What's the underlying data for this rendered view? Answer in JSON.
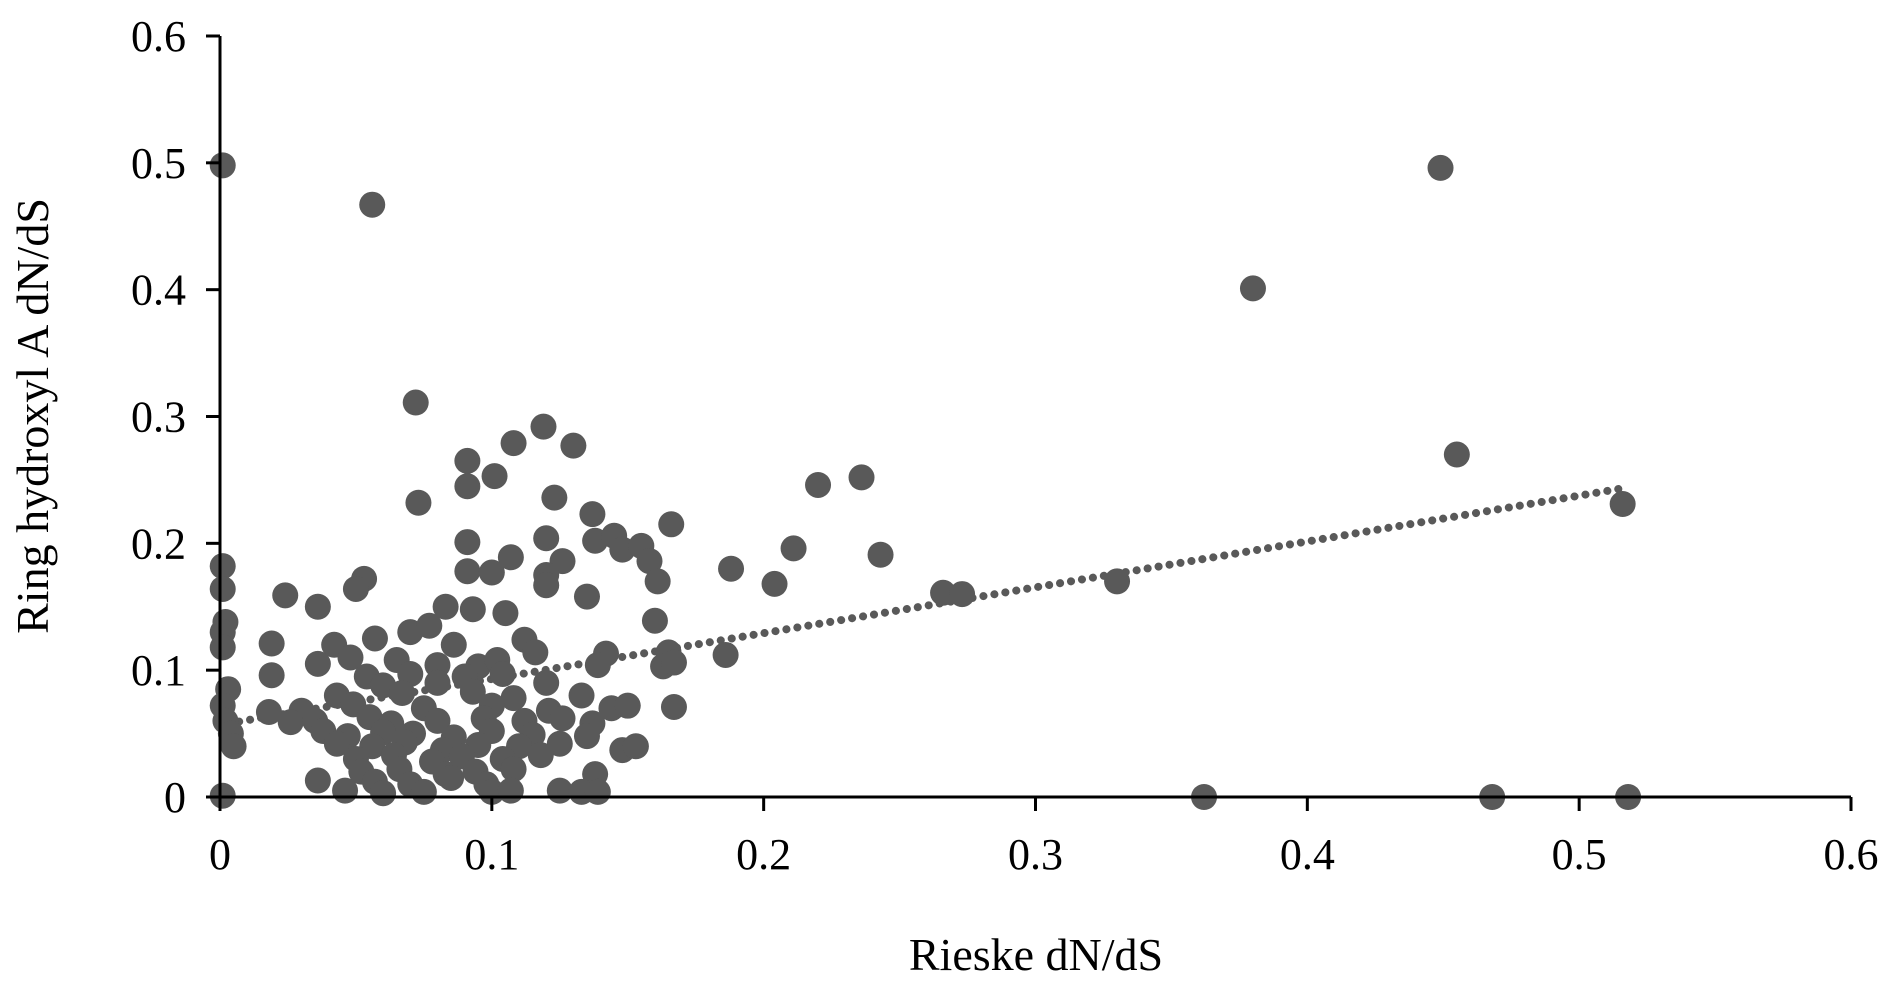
{
  "chart_data": {
    "type": "scatter",
    "title": "",
    "xlabel": "Rieske dN/dS",
    "ylabel": "Ring hydroxyl A dN/dS",
    "xlim": [
      0,
      0.6
    ],
    "ylim": [
      0,
      0.6
    ],
    "xticks": [
      0,
      0.1,
      0.2,
      0.3,
      0.4,
      0.5,
      0.6
    ],
    "yticks": [
      0,
      0.1,
      0.2,
      0.3,
      0.4,
      0.5,
      0.6
    ],
    "xtick_labels": [
      "0",
      "0.1",
      "0.2",
      "0.3",
      "0.4",
      "0.5",
      "0.6"
    ],
    "ytick_labels": [
      "0",
      "0.1",
      "0.2",
      "0.3",
      "0.4",
      "0.5",
      "0.6"
    ],
    "grid": false,
    "legend": "none",
    "marker_color": "#595959",
    "trendline": {
      "type": "linear",
      "style": "dotted",
      "color": "#595959",
      "x": [
        0.003,
        0.515
      ],
      "y": [
        0.058,
        0.243
      ]
    },
    "series": [
      {
        "name": "points",
        "points": [
          [
            0.001,
            0.498
          ],
          [
            0.056,
            0.467
          ],
          [
            0.449,
            0.496
          ],
          [
            0.38,
            0.401
          ],
          [
            0.072,
            0.311
          ],
          [
            0.455,
            0.27
          ],
          [
            0.516,
            0.231
          ],
          [
            0.119,
            0.292
          ],
          [
            0.108,
            0.279
          ],
          [
            0.13,
            0.277
          ],
          [
            0.091,
            0.265
          ],
          [
            0.101,
            0.253
          ],
          [
            0.091,
            0.245
          ],
          [
            0.22,
            0.246
          ],
          [
            0.236,
            0.252
          ],
          [
            0.073,
            0.232
          ],
          [
            0.123,
            0.236
          ],
          [
            0.137,
            0.223
          ],
          [
            0.166,
            0.215
          ],
          [
            0.12,
            0.204
          ],
          [
            0.138,
            0.202
          ],
          [
            0.145,
            0.206
          ],
          [
            0.148,
            0.195
          ],
          [
            0.155,
            0.198
          ],
          [
            0.243,
            0.191
          ],
          [
            0.211,
            0.196
          ],
          [
            0.091,
            0.201
          ],
          [
            0.107,
            0.189
          ],
          [
            0.126,
            0.186
          ],
          [
            0.158,
            0.186
          ],
          [
            0.188,
            0.18
          ],
          [
            0.091,
            0.178
          ],
          [
            0.1,
            0.177
          ],
          [
            0.12,
            0.175
          ],
          [
            0.001,
            0.182
          ],
          [
            0.053,
            0.172
          ],
          [
            0.12,
            0.167
          ],
          [
            0.161,
            0.17
          ],
          [
            0.204,
            0.168
          ],
          [
            0.33,
            0.17
          ],
          [
            0.001,
            0.164
          ],
          [
            0.05,
            0.164
          ],
          [
            0.024,
            0.159
          ],
          [
            0.135,
            0.158
          ],
          [
            0.266,
            0.161
          ],
          [
            0.273,
            0.16
          ],
          [
            0.036,
            0.15
          ],
          [
            0.083,
            0.15
          ],
          [
            0.093,
            0.148
          ],
          [
            0.105,
            0.145
          ],
          [
            0.002,
            0.138
          ],
          [
            0.001,
            0.13
          ],
          [
            0.001,
            0.118
          ],
          [
            0.07,
            0.13
          ],
          [
            0.077,
            0.135
          ],
          [
            0.16,
            0.139
          ],
          [
            0.019,
            0.121
          ],
          [
            0.042,
            0.12
          ],
          [
            0.057,
            0.125
          ],
          [
            0.112,
            0.124
          ],
          [
            0.116,
            0.114
          ],
          [
            0.086,
            0.12
          ],
          [
            0.142,
            0.113
          ],
          [
            0.165,
            0.114
          ],
          [
            0.186,
            0.112
          ],
          [
            0.036,
            0.105
          ],
          [
            0.048,
            0.11
          ],
          [
            0.065,
            0.108
          ],
          [
            0.08,
            0.104
          ],
          [
            0.095,
            0.103
          ],
          [
            0.102,
            0.108
          ],
          [
            0.139,
            0.104
          ],
          [
            0.163,
            0.103
          ],
          [
            0.167,
            0.106
          ],
          [
            0.019,
            0.096
          ],
          [
            0.054,
            0.095
          ],
          [
            0.07,
            0.097
          ],
          [
            0.09,
            0.095
          ],
          [
            0.104,
            0.097
          ],
          [
            0.12,
            0.09
          ],
          [
            0.003,
            0.085
          ],
          [
            0.06,
            0.088
          ],
          [
            0.08,
            0.09
          ],
          [
            0.043,
            0.08
          ],
          [
            0.067,
            0.082
          ],
          [
            0.093,
            0.083
          ],
          [
            0.108,
            0.078
          ],
          [
            0.133,
            0.08
          ],
          [
            0.001,
            0.072
          ],
          [
            0.018,
            0.067
          ],
          [
            0.03,
            0.068
          ],
          [
            0.049,
            0.073
          ],
          [
            0.075,
            0.07
          ],
          [
            0.1,
            0.072
          ],
          [
            0.121,
            0.068
          ],
          [
            0.144,
            0.07
          ],
          [
            0.15,
            0.072
          ],
          [
            0.167,
            0.071
          ],
          [
            0.002,
            0.06
          ],
          [
            0.026,
            0.059
          ],
          [
            0.035,
            0.06
          ],
          [
            0.055,
            0.063
          ],
          [
            0.063,
            0.058
          ],
          [
            0.08,
            0.06
          ],
          [
            0.097,
            0.062
          ],
          [
            0.112,
            0.06
          ],
          [
            0.126,
            0.062
          ],
          [
            0.137,
            0.058
          ],
          [
            0.004,
            0.05
          ],
          [
            0.038,
            0.052
          ],
          [
            0.047,
            0.048
          ],
          [
            0.06,
            0.051
          ],
          [
            0.071,
            0.05
          ],
          [
            0.086,
            0.047
          ],
          [
            0.1,
            0.052
          ],
          [
            0.115,
            0.049
          ],
          [
            0.135,
            0.048
          ],
          [
            0.005,
            0.04
          ],
          [
            0.043,
            0.042
          ],
          [
            0.056,
            0.04
          ],
          [
            0.068,
            0.043
          ],
          [
            0.082,
            0.037
          ],
          [
            0.095,
            0.041
          ],
          [
            0.11,
            0.04
          ],
          [
            0.125,
            0.042
          ],
          [
            0.148,
            0.037
          ],
          [
            0.153,
            0.04
          ],
          [
            0.05,
            0.03
          ],
          [
            0.064,
            0.033
          ],
          [
            0.078,
            0.028
          ],
          [
            0.089,
            0.032
          ],
          [
            0.104,
            0.03
          ],
          [
            0.118,
            0.033
          ],
          [
            0.052,
            0.02
          ],
          [
            0.066,
            0.022
          ],
          [
            0.083,
            0.018
          ],
          [
            0.094,
            0.02
          ],
          [
            0.108,
            0.022
          ],
          [
            0.138,
            0.018
          ],
          [
            0.036,
            0.013
          ],
          [
            0.057,
            0.012
          ],
          [
            0.07,
            0.01
          ],
          [
            0.085,
            0.015
          ],
          [
            0.098,
            0.01
          ],
          [
            0.046,
            0.005
          ],
          [
            0.06,
            0.003
          ],
          [
            0.075,
            0.004
          ],
          [
            0.1,
            0.004
          ],
          [
            0.107,
            0.005
          ],
          [
            0.125,
            0.005
          ],
          [
            0.133,
            0.004
          ],
          [
            0.139,
            0.004
          ],
          [
            0.001,
            0.001
          ],
          [
            0.362,
            0.0
          ],
          [
            0.468,
            0.0
          ],
          [
            0.518,
            0.0
          ]
        ]
      }
    ]
  }
}
